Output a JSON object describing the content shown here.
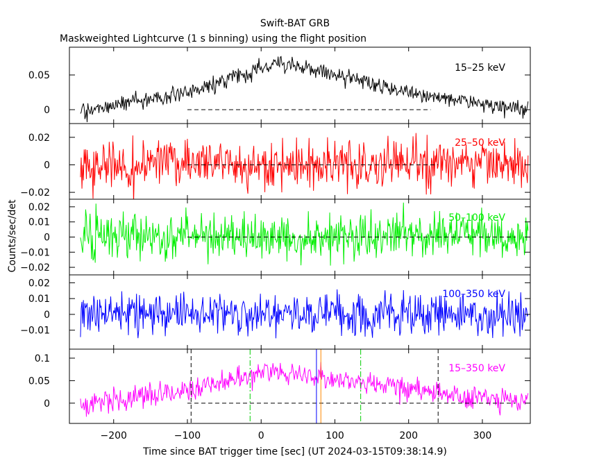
{
  "figure": {
    "title": "Swift-BAT GRB",
    "subtitle": "Maskweighted Lightcurve (1 s binning) using the flight position",
    "xlabel": "Time since BAT trigger time [sec] (UT 2024-03-15T09:38:14.9)",
    "ylabel": "Counts/sec/det",
    "xlim": [
      -260,
      365
    ],
    "xticks": [
      -200,
      -100,
      0,
      100,
      200,
      300
    ],
    "xtick_labels": [
      "−200",
      "−100",
      "0",
      "100",
      "200",
      "300"
    ]
  },
  "chart_data": [
    {
      "type": "line",
      "band": "15–25 keV",
      "color": "#000000",
      "ylim": [
        -0.02,
        0.09
      ],
      "yticks": [
        0,
        0.05
      ],
      "ytick_labels": [
        "0",
        "0.05"
      ],
      "series": [
        {
          "x": [
            -245,
            -200,
            -150,
            -100,
            -50,
            0,
            20,
            50,
            100,
            150,
            200,
            250,
            300,
            345,
            362
          ],
          "y": [
            -0.001,
            0.006,
            0.014,
            0.022,
            0.042,
            0.06,
            0.066,
            0.062,
            0.05,
            0.038,
            0.026,
            0.016,
            0.008,
            0.003,
            0.002
          ],
          "noise": 0.006
        }
      ],
      "zero_line": [
        -100,
        230
      ]
    },
    {
      "type": "line",
      "band": "25–50 keV",
      "color": "#ff0000",
      "ylim": [
        -0.025,
        0.03
      ],
      "yticks": [
        -0.02,
        0,
        0.02
      ],
      "ytick_labels": [
        "−0.02",
        "0",
        "0.02"
      ],
      "series": [
        {
          "x": [
            -245,
            362
          ],
          "y": [
            0.001,
            0.001
          ],
          "noise": 0.0085
        }
      ],
      "zero_line": [
        -100,
        240
      ]
    },
    {
      "type": "line",
      "band": "50–100 keV",
      "color": "#00ee00",
      "ylim": [
        -0.025,
        0.025
      ],
      "yticks": [
        -0.02,
        -0.01,
        0,
        0.01,
        0.02
      ],
      "ytick_labels": [
        "−0.02",
        "−0.01",
        "0",
        "0.01",
        "0.02"
      ],
      "series": [
        {
          "x": [
            -245,
            362
          ],
          "y": [
            0.0005,
            0.0005
          ],
          "noise": 0.0075
        }
      ],
      "zero_line": [
        -100,
        345
      ]
    },
    {
      "type": "line",
      "band": "100–350 keV",
      "color": "#0000ff",
      "ylim": [
        -0.022,
        0.025
      ],
      "yticks": [
        -0.01,
        0,
        0.01,
        0.02
      ],
      "ytick_labels": [
        "−0.01",
        "0",
        "0.01",
        "0.02"
      ],
      "series": [
        {
          "x": [
            -245,
            362
          ],
          "y": [
            0.0005,
            0.0005
          ],
          "noise": 0.0065
        }
      ],
      "zero_line": null
    },
    {
      "type": "line",
      "band": "15–350 keV",
      "color": "#ff00ff",
      "ylim": [
        -0.045,
        0.12
      ],
      "yticks": [
        0,
        0.05,
        0.1
      ],
      "ytick_labels": [
        "0",
        "0.05",
        "0.1"
      ],
      "series": [
        {
          "x": [
            -245,
            -200,
            -150,
            -100,
            -50,
            0,
            20,
            50,
            100,
            150,
            200,
            250,
            300,
            345,
            362
          ],
          "y": [
            -0.003,
            0.008,
            0.016,
            0.024,
            0.048,
            0.062,
            0.068,
            0.064,
            0.054,
            0.042,
            0.032,
            0.022,
            0.014,
            0.007,
            0.005
          ],
          "noise": 0.013
        }
      ],
      "zero_line": [
        -100,
        345
      ],
      "markers": [
        {
          "x": -95,
          "color": "#000000",
          "style": "dashed"
        },
        {
          "x": 240,
          "color": "#000000",
          "style": "dashed"
        },
        {
          "x": -15,
          "color": "#00cc00",
          "style": "dashdot"
        },
        {
          "x": 135,
          "color": "#00cc00",
          "style": "dashdot"
        },
        {
          "x": 75,
          "color": "#0000ff",
          "style": "solid"
        },
        {
          "x": 81,
          "color": "#ff8800",
          "style": "solid"
        }
      ]
    }
  ]
}
